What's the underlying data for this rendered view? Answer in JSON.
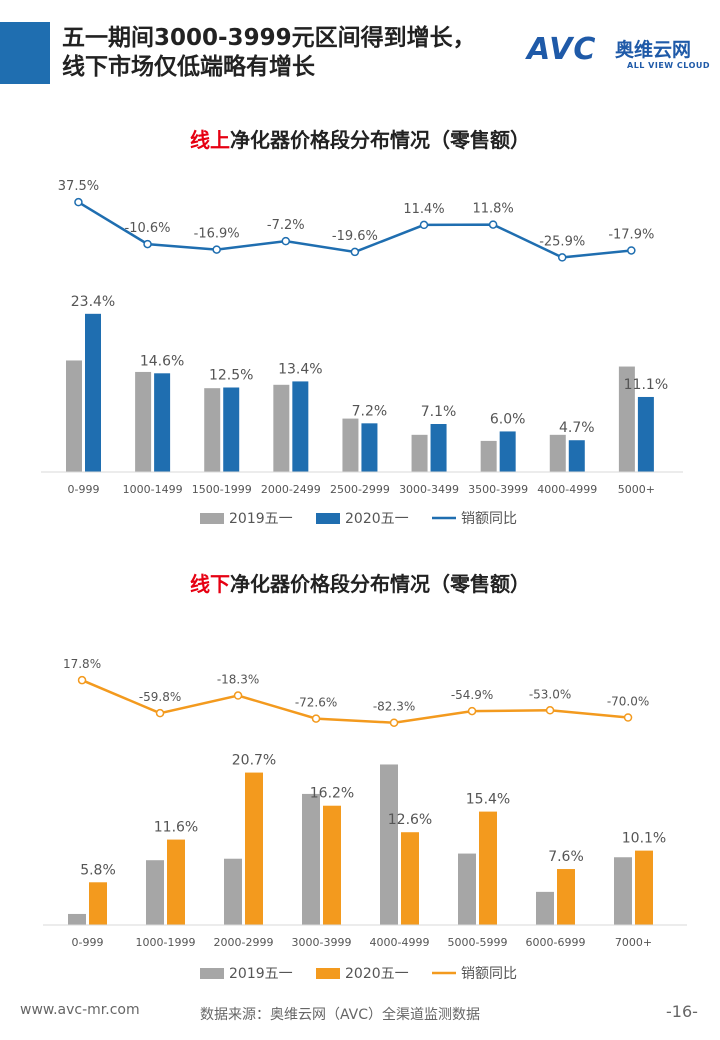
{
  "title": "五一期间3000-3999元区间得到增长，线下市场仅低端略有增长",
  "logo": {
    "mark": "AVC",
    "cn": "奥维云网",
    "en": "ALL VIEW CLOUD"
  },
  "colors": {
    "accent": "#1f6eb0",
    "gray": "#a6a6a6",
    "online": "#1f6eb0",
    "offline": "#f39a1e",
    "title_highlight": "#e60012"
  },
  "chart_data": [
    {
      "type": "bar",
      "title_highlight": "线上",
      "title_rest": "净化器价格段分布情况（零售额）",
      "categories": [
        "0-999",
        "1000-1499",
        "1500-1999",
        "2000-2499",
        "2500-2999",
        "3000-3499",
        "3500-3999",
        "4000-4999",
        "5000+"
      ],
      "series": [
        {
          "name": "2019五一",
          "kind": "bar",
          "values": [
            16.5,
            14.8,
            12.4,
            12.9,
            7.9,
            5.5,
            4.6,
            5.5,
            15.6
          ]
        },
        {
          "name": "2020五一",
          "kind": "bar",
          "values": [
            23.4,
            14.6,
            12.5,
            13.4,
            7.2,
            7.1,
            6.0,
            4.7,
            11.1
          ],
          "labels": [
            "23.4%",
            "14.6%",
            "12.5%",
            "13.4%",
            "7.2%",
            "7.1%",
            "6.0%",
            "4.7%",
            "11.1%"
          ]
        },
        {
          "name": "销额同比",
          "kind": "line",
          "values": [
            37.5,
            -10.6,
            -16.9,
            -7.2,
            -19.6,
            11.4,
            11.8,
            -25.9,
            -17.9
          ],
          "labels": [
            "37.5%",
            "-10.6%",
            "-16.9%",
            "-7.2%",
            "-19.6%",
            "11.4%",
            "11.8%",
            "-25.9%",
            "-17.9%"
          ]
        }
      ],
      "bar_ylim": [
        0,
        25
      ],
      "line_ylim": [
        -30,
        40
      ],
      "legend_position": "bottom"
    },
    {
      "type": "bar",
      "title_highlight": "线下",
      "title_rest": "净化器价格段分布情况（零售额）",
      "categories": [
        "0-999",
        "1000-1999",
        "2000-2999",
        "3000-3999",
        "4000-4999",
        "5000-5999",
        "6000-6999",
        "7000+"
      ],
      "series": [
        {
          "name": "2019五一",
          "kind": "bar",
          "values": [
            1.5,
            8.8,
            9.0,
            17.8,
            21.8,
            9.7,
            4.5,
            9.2
          ]
        },
        {
          "name": "2020五一",
          "kind": "bar",
          "values": [
            5.8,
            11.6,
            20.7,
            16.2,
            12.6,
            15.4,
            7.6,
            10.1
          ],
          "labels": [
            "5.8%",
            "11.6%",
            "20.7%",
            "16.2%",
            "12.6%",
            "15.4%",
            "7.6%",
            "10.1%"
          ]
        },
        {
          "name": "销额同比",
          "kind": "line",
          "values": [
            17.8,
            -59.8,
            -18.3,
            -72.6,
            -82.3,
            -54.9,
            -53.0,
            -70.0
          ],
          "labels": [
            "17.8%",
            "-59.8%",
            "-18.3%",
            "-72.6%",
            "-82.3%",
            "-54.9%",
            "-53.0%",
            "-70.0%"
          ]
        }
      ],
      "bar_ylim": [
        0,
        22
      ],
      "line_ylim": [
        -90,
        30
      ],
      "legend_position": "bottom"
    }
  ],
  "footer": {
    "website": "www.avc-mr.com",
    "source": "数据来源：奥维云网（AVC）全渠道监测数据",
    "page": "-16-"
  }
}
